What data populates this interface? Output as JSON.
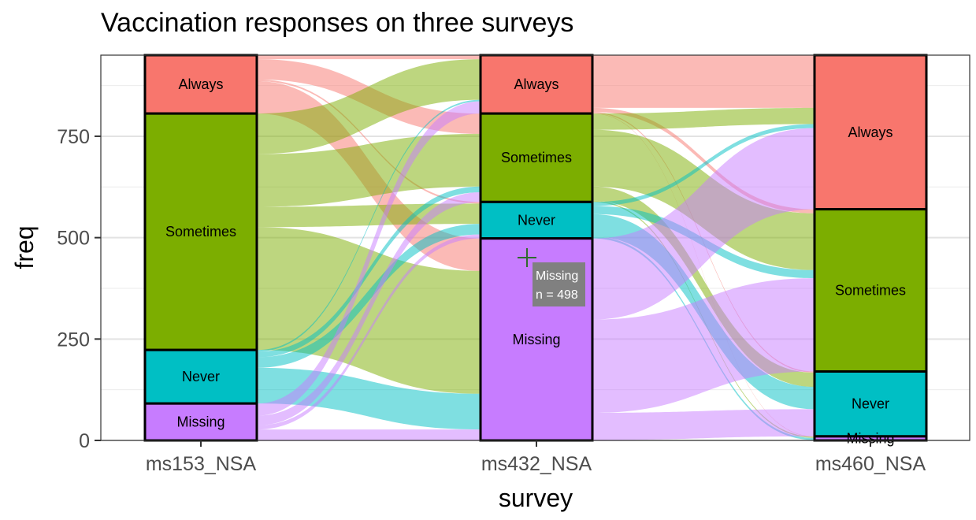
{
  "chart_data": {
    "type": "alluvial",
    "title": "Vaccination responses on three surveys",
    "xlabel": "survey",
    "ylabel": "freq",
    "ylim": [
      0,
      950
    ],
    "yticks": [
      0,
      250,
      500,
      750
    ],
    "grid": true,
    "legend": "none",
    "axes": [
      "ms153_NSA",
      "ms432_NSA",
      "ms460_NSA"
    ],
    "category_order": [
      "Always",
      "Sometimes",
      "Never",
      "Missing"
    ],
    "colors": {
      "Always": "#F8766D",
      "Sometimes": "#7CAE00",
      "Never": "#00BFC4",
      "Missing": "#C77CFF"
    },
    "strata": [
      {
        "axis": "ms153_NSA",
        "values": {
          "Always": 144,
          "Sometimes": 583,
          "Never": 132,
          "Missing": 91
        }
      },
      {
        "axis": "ms432_NSA",
        "values": {
          "Always": 144,
          "Sometimes": 218,
          "Never": 90,
          "Missing": 498
        }
      },
      {
        "axis": "ms460_NSA",
        "values": {
          "Always": 380,
          "Sometimes": 400,
          "Never": 160,
          "Missing": 10
        }
      }
    ],
    "flows_1_2": [
      {
        "from": "Always",
        "to": "Always",
        "value": 10
      },
      {
        "from": "Always",
        "to": "Sometimes",
        "value": 50
      },
      {
        "from": "Always",
        "to": "Never",
        "value": 4
      },
      {
        "from": "Always",
        "to": "Missing",
        "value": 80
      },
      {
        "from": "Sometimes",
        "to": "Always",
        "value": 100
      },
      {
        "from": "Sometimes",
        "to": "Sometimes",
        "value": 130
      },
      {
        "from": "Sometimes",
        "to": "Never",
        "value": 50
      },
      {
        "from": "Sometimes",
        "to": "Missing",
        "value": 303
      },
      {
        "from": "Never",
        "to": "Always",
        "value": 4
      },
      {
        "from": "Never",
        "to": "Sometimes",
        "value": 14
      },
      {
        "from": "Never",
        "to": "Never",
        "value": 26
      },
      {
        "from": "Never",
        "to": "Missing",
        "value": 88
      },
      {
        "from": "Missing",
        "to": "Always",
        "value": 30
      },
      {
        "from": "Missing",
        "to": "Sometimes",
        "value": 24
      },
      {
        "from": "Missing",
        "to": "Never",
        "value": 10
      },
      {
        "from": "Missing",
        "to": "Missing",
        "value": 27
      }
    ],
    "flows_2_3": [
      {
        "from": "Always",
        "to": "Always",
        "value": 130
      },
      {
        "from": "Always",
        "to": "Sometimes",
        "value": 10
      },
      {
        "from": "Always",
        "to": "Never",
        "value": 3
      },
      {
        "from": "Always",
        "to": "Missing",
        "value": 1
      },
      {
        "from": "Sometimes",
        "to": "Always",
        "value": 40
      },
      {
        "from": "Sometimes",
        "to": "Sometimes",
        "value": 140
      },
      {
        "from": "Sometimes",
        "to": "Never",
        "value": 35
      },
      {
        "from": "Sometimes",
        "to": "Missing",
        "value": 3
      },
      {
        "from": "Never",
        "to": "Always",
        "value": 10
      },
      {
        "from": "Never",
        "to": "Sometimes",
        "value": 20
      },
      {
        "from": "Never",
        "to": "Never",
        "value": 55
      },
      {
        "from": "Never",
        "to": "Missing",
        "value": 5
      },
      {
        "from": "Missing",
        "to": "Always",
        "value": 200
      },
      {
        "from": "Missing",
        "to": "Sometimes",
        "value": 230
      },
      {
        "from": "Missing",
        "to": "Never",
        "value": 67
      },
      {
        "from": "Missing",
        "to": "Missing",
        "value": 1
      }
    ],
    "tooltip": {
      "axis": "ms432_NSA",
      "category": "Missing",
      "line1": "Missing",
      "line2": "n = 498"
    }
  }
}
